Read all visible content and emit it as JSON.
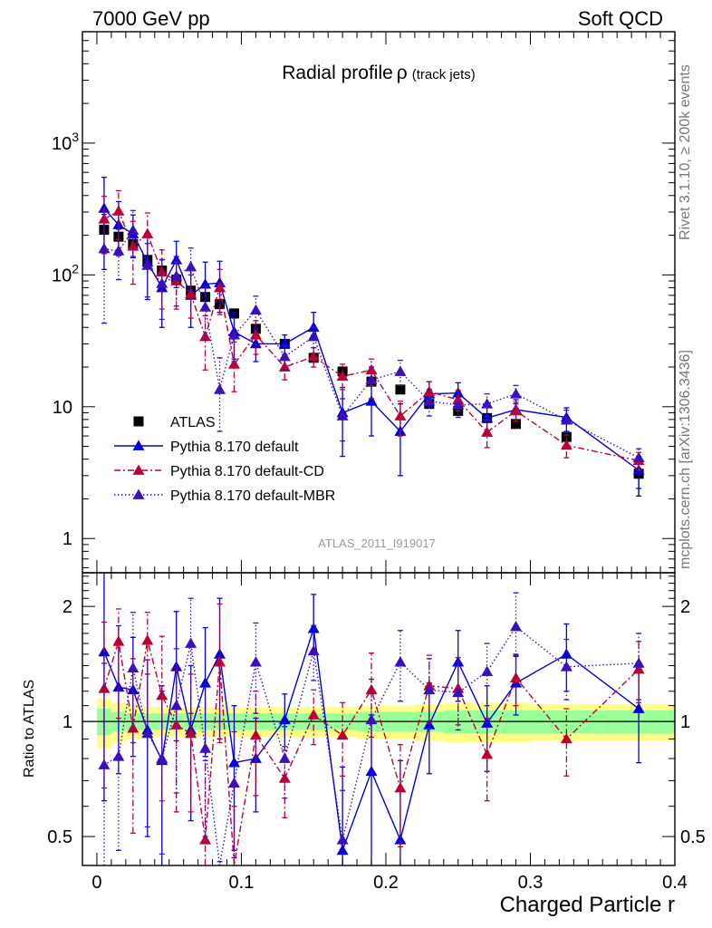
{
  "header": {
    "left": "7000 GeV pp",
    "right": "Soft QCD"
  },
  "side": {
    "top": "Rivet 3.1.10, ≥ 200k events",
    "bottom": "mcplots.cern.ch [arXiv:1306.3436]"
  },
  "analysis_tag": "ATLAS_2011_I919017",
  "colors": {
    "atlas": "#000000",
    "default": "#0000dd",
    "cd": "#bb0033",
    "mbr": "#3b0fbb",
    "band_inner": "#99ff99",
    "band_outer": "#ffff88"
  },
  "chart_data": [
    {
      "type": "line",
      "title": "Radial profile",
      "title_symbol": "ρ",
      "title_suffix": "(track jets)",
      "xlabel": "Charged Particle r",
      "ylabel": "",
      "yscale": "log",
      "xlim": [
        -0.01,
        0.4
      ],
      "ylim": [
        0.55,
        7000
      ],
      "y_ticks": [
        {
          "v": 1,
          "label": "1"
        },
        {
          "v": 10,
          "label": "10"
        },
        {
          "v": 100,
          "label": "10",
          "sup": "2"
        },
        {
          "v": 1000,
          "label": "10",
          "sup": "3"
        }
      ],
      "x": [
        0.005,
        0.015,
        0.025,
        0.035,
        0.045,
        0.055,
        0.065,
        0.075,
        0.085,
        0.095,
        0.11,
        0.13,
        0.15,
        0.17,
        0.19,
        0.21,
        0.23,
        0.25,
        0.27,
        0.29,
        0.325,
        0.375
      ],
      "legend_position": "lower-left",
      "series": [
        {
          "name": "ATLAS",
          "marker": "square",
          "values": [
            220,
            195,
            172,
            130,
            108,
            92,
            76,
            68,
            60,
            51,
            39,
            30,
            23.5,
            18.5,
            15.5,
            13.5,
            10.5,
            9.3,
            8.2,
            7.4,
            5.9,
            3.1
          ],
          "err_lo": [
            0,
            0,
            0,
            0,
            0,
            0,
            0,
            0,
            0,
            0,
            0,
            0,
            0,
            0,
            0,
            0,
            0,
            0,
            0,
            0,
            0,
            1.0
          ],
          "err_hi": [
            0,
            0,
            0,
            0,
            0,
            0,
            0,
            0,
            0,
            0,
            0,
            0,
            0,
            0,
            0,
            0,
            0,
            0,
            0,
            0,
            0,
            0.8
          ]
        },
        {
          "name": "Pythia 8.170 default",
          "marker": "triangle",
          "line": "solid",
          "values": [
            320,
            240,
            205,
            125,
            80,
            130,
            70,
            85,
            87,
            37,
            30,
            30,
            40,
            9,
            11,
            6.5,
            12.5,
            12.7,
            8.2,
            9.5,
            8.3,
            3.3
          ],
          "err_lo": [
            210,
            100,
            70,
            60,
            40,
            50,
            30,
            30,
            35,
            15,
            8,
            5,
            5,
            4.8,
            5,
            3.5,
            2.5,
            2,
            2,
            1.8,
            1.8,
            0.9
          ],
          "err_hi": [
            230,
            120,
            80,
            70,
            50,
            50,
            40,
            40,
            40,
            15,
            8,
            5,
            12,
            5,
            4,
            4,
            3,
            2.5,
            2,
            1.8,
            1.5,
            0.9
          ]
        },
        {
          "name": "Pythia 8.170 default-CD",
          "marker": "triangle",
          "line": "dashdot",
          "values": [
            265,
            305,
            165,
            205,
            105,
            90,
            72,
            34,
            80,
            21,
            35,
            20,
            24,
            17,
            19,
            8.5,
            13,
            11.3,
            6.4,
            9.3,
            5.1,
            3.9
          ],
          "err_lo": [
            120,
            120,
            80,
            90,
            50,
            35,
            25,
            15,
            30,
            8,
            10,
            4,
            4,
            3.5,
            4.5,
            2.5,
            2.5,
            2,
            1.5,
            1.5,
            1,
            0.6
          ],
          "err_hi": [
            130,
            130,
            90,
            90,
            50,
            35,
            28,
            15,
            30,
            10,
            10,
            4,
            4,
            4,
            4,
            2.5,
            2.5,
            2,
            1.5,
            1.5,
            1,
            0.6
          ]
        },
        {
          "name": "Pythia 8.170 default-MBR",
          "marker": "triangle",
          "line": "dotted",
          "values": [
            158,
            152,
            218,
            118,
            86,
            98,
            115,
            57,
            13.5,
            35,
            54,
            24,
            34,
            8.5,
            16,
            18.5,
            11,
            10.3,
            10.5,
            12.5,
            7.9,
            4.1
          ],
          "err_lo": [
            115,
            60,
            80,
            50,
            40,
            40,
            40,
            25,
            7,
            12,
            15,
            5,
            6,
            3,
            4.5,
            4,
            2.5,
            2,
            2,
            2,
            1.5,
            0.7
          ],
          "err_hi": [
            130,
            70,
            90,
            55,
            45,
            40,
            45,
            25,
            10,
            12,
            15,
            5,
            6,
            3,
            4,
            4,
            2.5,
            2,
            2,
            2,
            1.5,
            0.7
          ]
        }
      ]
    },
    {
      "type": "line",
      "title": "",
      "xlabel": "Charged Particle r",
      "ylabel": "Ratio to ATLAS",
      "yscale": "log",
      "xlim": [
        -0.01,
        0.4
      ],
      "ylim": [
        0.42,
        2.45
      ],
      "x_ticks": [
        {
          "v": 0,
          "label": "0"
        },
        {
          "v": 0.1,
          "label": "0.1"
        },
        {
          "v": 0.2,
          "label": "0.2"
        },
        {
          "v": 0.3,
          "label": "0.3"
        },
        {
          "v": 0.4,
          "label": "0.4"
        }
      ],
      "y_ticks": [
        {
          "v": 0.5,
          "label": "0.5"
        },
        {
          "v": 1,
          "label": "1"
        },
        {
          "v": 2,
          "label": "2"
        }
      ],
      "band_x_edges": [
        0,
        0.01,
        0.02,
        0.03,
        0.04,
        0.05,
        0.06,
        0.07,
        0.08,
        0.09,
        0.1,
        0.12,
        0.14,
        0.16,
        0.18,
        0.2,
        0.22,
        0.24,
        0.26,
        0.28,
        0.3,
        0.35,
        0.4
      ],
      "band_inner_half": [
        0.08,
        0.06,
        0.05,
        0.05,
        0.05,
        0.05,
        0.05,
        0.05,
        0.05,
        0.05,
        0.05,
        0.05,
        0.05,
        0.05,
        0.06,
        0.06,
        0.06,
        0.07,
        0.07,
        0.07,
        0.07,
        0.07
      ],
      "band_outer_half": [
        0.15,
        0.12,
        0.1,
        0.09,
        0.09,
        0.09,
        0.09,
        0.09,
        0.09,
        0.09,
        0.09,
        0.09,
        0.09,
        0.09,
        0.1,
        0.1,
        0.11,
        0.12,
        0.12,
        0.12,
        0.11,
        0.11
      ],
      "series": [
        {
          "name": "Pythia 8.170 default",
          "values": [
            1.52,
            1.23,
            1.21,
            0.95,
            0.79,
            1.39,
            0.95,
            1.26,
            1.5,
            0.78,
            0.8,
            1.01,
            1.75,
            0.46,
            0.74,
            0.49,
            0.98,
            1.43,
            0.99,
            1.26,
            1.5,
            1.08
          ],
          "err_lo": [
            0.9,
            0.5,
            0.4,
            0.45,
            0.4,
            0.5,
            0.4,
            0.45,
            0.6,
            0.32,
            0.22,
            0.17,
            0.22,
            0.3,
            0.35,
            0.3,
            0.25,
            0.3,
            0.25,
            0.22,
            0.3,
            0.3
          ],
          "err_hi": [
            0.95,
            0.55,
            0.45,
            0.5,
            0.45,
            0.55,
            0.45,
            0.5,
            0.6,
            0.32,
            0.22,
            0.17,
            0.4,
            0.3,
            0.3,
            0.3,
            0.28,
            0.3,
            0.25,
            0.22,
            0.3,
            0.3
          ]
        },
        {
          "name": "Pythia 8.170 default-CD",
          "values": [
            1.22,
            1.62,
            0.96,
            1.63,
            1.17,
            0.98,
            0.93,
            0.49,
            1.43,
            0.4,
            0.92,
            0.71,
            1.04,
            0.92,
            1.21,
            0.67,
            1.24,
            1.22,
            0.82,
            1.3,
            0.9,
            1.37
          ],
          "err_lo": [
            0.55,
            0.6,
            0.45,
            0.7,
            0.55,
            0.4,
            0.35,
            0.25,
            0.55,
            0.2,
            0.28,
            0.15,
            0.17,
            0.2,
            0.3,
            0.2,
            0.25,
            0.24,
            0.2,
            0.2,
            0.18,
            0.25
          ],
          "err_hi": [
            0.6,
            0.35,
            0.5,
            0.3,
            0.5,
            0.4,
            0.4,
            0.3,
            0.6,
            0.2,
            0.28,
            0.15,
            0.17,
            0.2,
            0.3,
            0.2,
            0.25,
            0.25,
            0.2,
            0.2,
            0.18,
            0.25
          ]
        },
        {
          "name": "Pythia 8.170 default-MBR",
          "values": [
            0.77,
            0.81,
            1.38,
            0.93,
            0.8,
            1.1,
            1.6,
            0.85,
            0.23,
            0.69,
            1.43,
            0.8,
            1.53,
            0.49,
            1.01,
            1.43,
            1.21,
            1.19,
            1.35,
            1.77,
            1.39,
            1.42
          ],
          "err_lo": [
            0.55,
            0.35,
            0.5,
            0.4,
            0.35,
            0.45,
            0.55,
            0.35,
            0.12,
            0.25,
            0.38,
            0.17,
            0.25,
            0.17,
            0.28,
            0.3,
            0.25,
            0.24,
            0.25,
            0.28,
            0.25,
            0.28
          ],
          "err_hi": [
            0.65,
            0.4,
            0.55,
            0.4,
            0.4,
            0.45,
            0.5,
            0.4,
            0.2,
            0.25,
            0.38,
            0.17,
            0.25,
            0.17,
            0.28,
            0.3,
            0.25,
            0.24,
            0.25,
            0.4,
            0.25,
            0.28
          ]
        }
      ]
    }
  ]
}
